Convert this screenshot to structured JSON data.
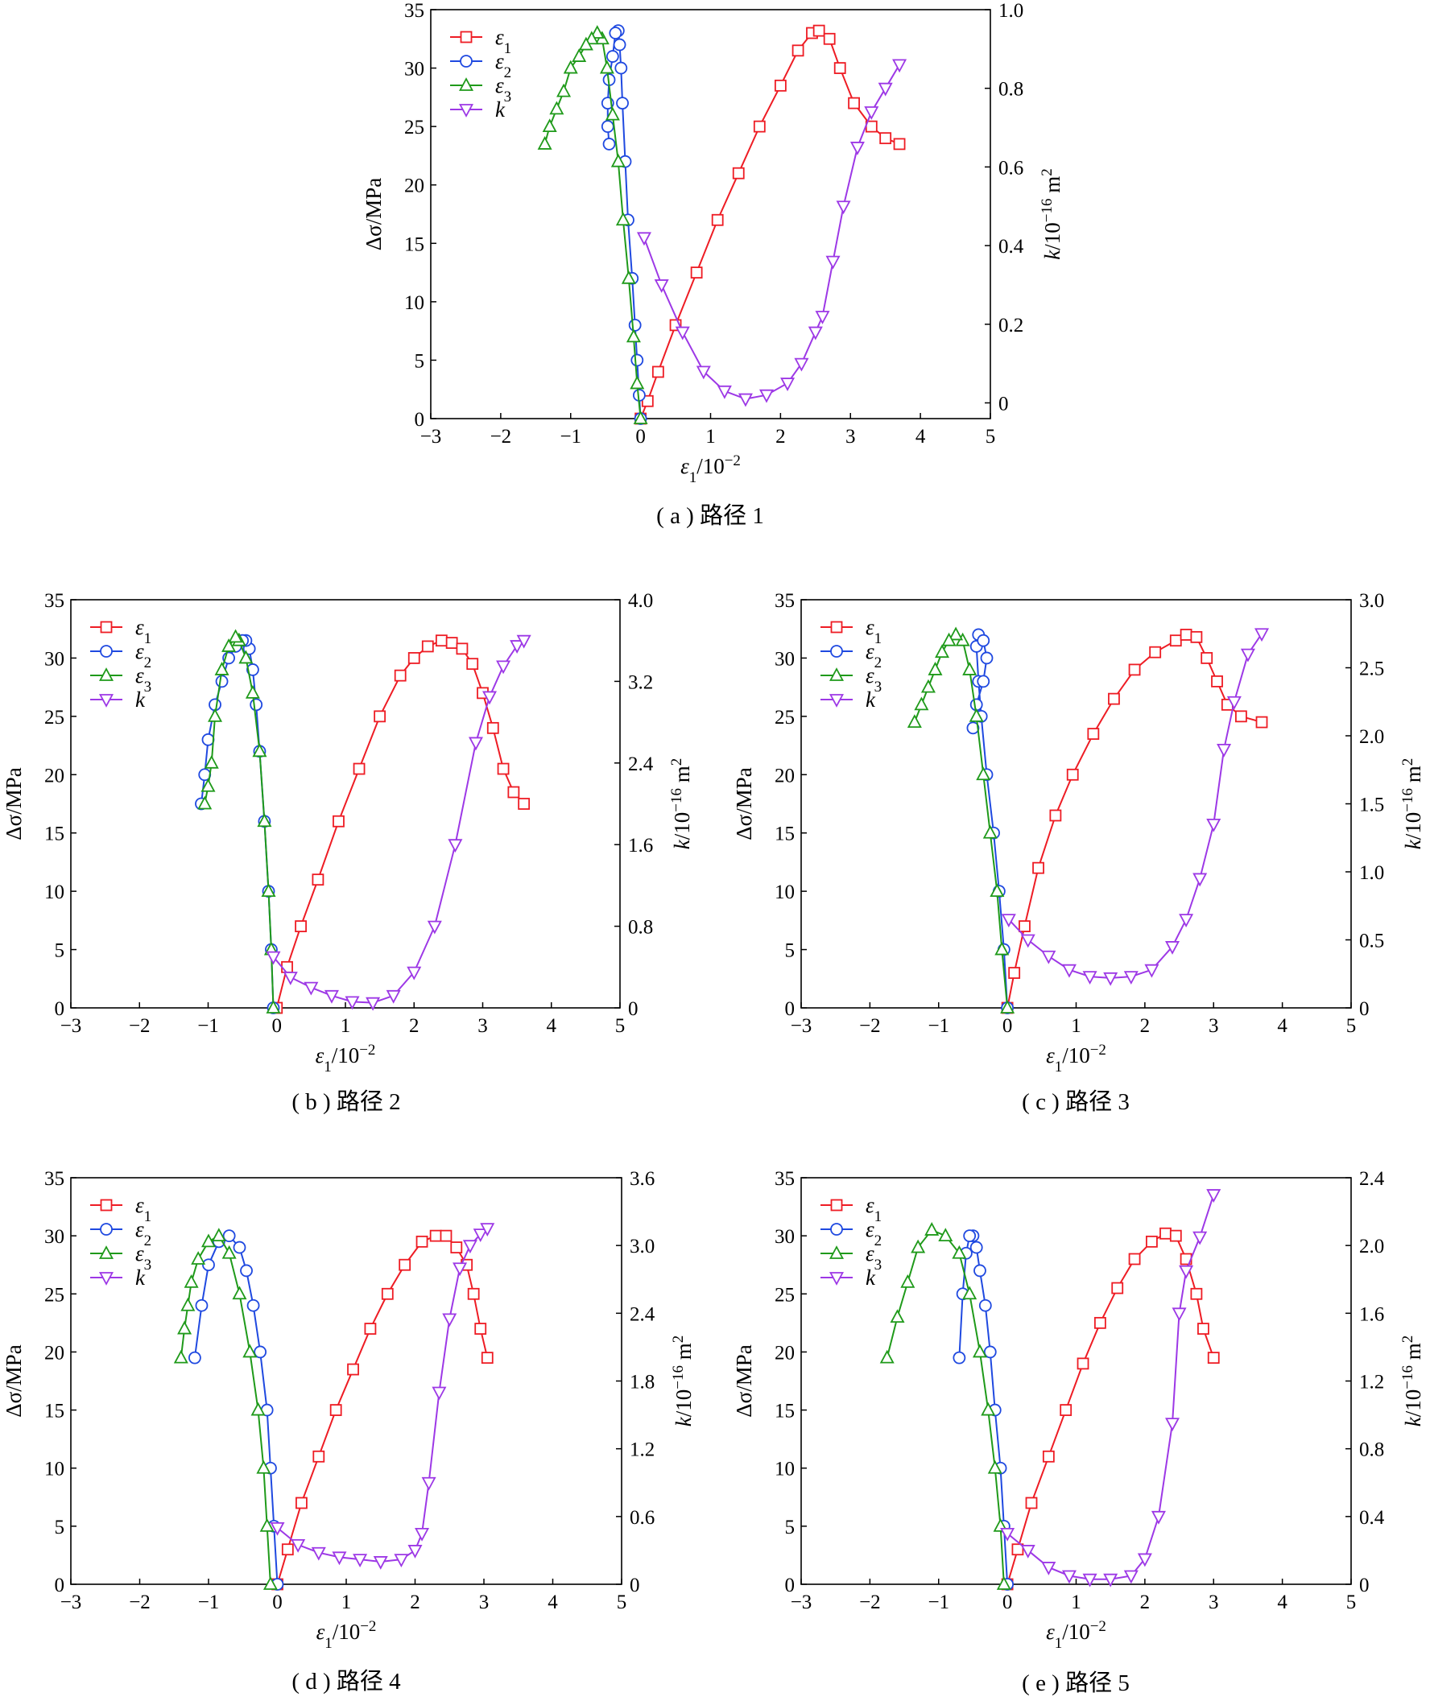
{
  "colors": {
    "eps1": "#ee1c24",
    "eps2": "#1f49e0",
    "eps3": "#1f9a1a",
    "k": "#9d38e6"
  },
  "axis_labels": {
    "x": {
      "pre": "ε",
      "sub": "1",
      "post": "/10",
      "sup": "−2"
    },
    "yleft": "Δσ/MPa",
    "yright": {
      "pre": "k",
      "post": "/10",
      "sup": "−16",
      "unit": " m",
      "unitsup": "2"
    }
  },
  "legend_labels": [
    {
      "key": "eps1",
      "pre": "ε",
      "sub": "1"
    },
    {
      "key": "eps2",
      "pre": "ε",
      "sub": "2"
    },
    {
      "key": "eps3",
      "pre": "ε",
      "sub": "3"
    },
    {
      "key": "k",
      "pre": "k",
      "sub": ""
    }
  ],
  "chart_data": [
    {
      "id": "a",
      "type": "line",
      "caption": "( a ) 路径 1",
      "xlim": [
        -3,
        5
      ],
      "xticks": [
        -3,
        -2,
        -1,
        0,
        1,
        2,
        3,
        4,
        5
      ],
      "ylim": [
        0,
        35
      ],
      "yticks": [
        0,
        5,
        10,
        15,
        20,
        25,
        30,
        35
      ],
      "y2lim": [
        -0.04,
        1.0
      ],
      "y2ticks": [
        0,
        0.2,
        0.4,
        0.6,
        0.8,
        1.0
      ],
      "y2ticklabels": [
        "0",
        "0.2",
        "0.4",
        "0.6",
        "0.8",
        "1.0"
      ],
      "legend": "top-left",
      "series": [
        {
          "key": "eps1",
          "axis": "left",
          "marker": "square",
          "x": [
            0,
            0.1,
            0.25,
            0.5,
            0.8,
            1.1,
            1.4,
            1.7,
            2.0,
            2.25,
            2.45,
            2.55,
            2.7,
            2.85,
            3.05,
            3.3,
            3.5,
            3.7
          ],
          "y": [
            0,
            1.5,
            4,
            8,
            12.5,
            17,
            21,
            25,
            28.5,
            31.5,
            33,
            33.2,
            32.5,
            30,
            27,
            25,
            24,
            23.5
          ]
        },
        {
          "key": "eps2",
          "axis": "left",
          "marker": "circle",
          "x": [
            0,
            -0.02,
            -0.05,
            -0.08,
            -0.12,
            -0.18,
            -0.22,
            -0.26,
            -0.28,
            -0.3,
            -0.32,
            -0.36,
            -0.4,
            -0.45,
            -0.47,
            -0.47,
            -0.45
          ],
          "y": [
            0,
            2,
            5,
            8,
            12,
            17,
            22,
            27,
            30,
            32,
            33.2,
            33,
            31,
            29,
            27,
            25,
            23.5
          ]
        },
        {
          "key": "eps3",
          "axis": "left",
          "marker": "triangle-up",
          "x": [
            0,
            -0.05,
            -0.1,
            -0.17,
            -0.25,
            -0.32,
            -0.4,
            -0.48,
            -0.55,
            -0.62,
            -0.7,
            -0.78,
            -0.88,
            -1.0,
            -1.1,
            -1.2,
            -1.3,
            -1.37
          ],
          "y": [
            0,
            3,
            7,
            12,
            17,
            22,
            26,
            30,
            32.5,
            33,
            32.5,
            32,
            31,
            30,
            28,
            26.5,
            25,
            23.5
          ]
        },
        {
          "key": "k",
          "axis": "right",
          "marker": "triangle-down",
          "x": [
            0.05,
            0.3,
            0.6,
            0.9,
            1.2,
            1.5,
            1.8,
            2.1,
            2.3,
            2.5,
            2.6,
            2.75,
            2.9,
            3.1,
            3.3,
            3.5,
            3.7
          ],
          "y": [
            0.42,
            0.3,
            0.18,
            0.08,
            0.03,
            0.01,
            0.02,
            0.05,
            0.1,
            0.18,
            0.22,
            0.36,
            0.5,
            0.65,
            0.74,
            0.8,
            0.86
          ]
        }
      ]
    },
    {
      "id": "b",
      "type": "line",
      "caption": "( b ) 路径 2",
      "xlim": [
        -3,
        5
      ],
      "xticks": [
        -3,
        -2,
        -1,
        0,
        1,
        2,
        3,
        4,
        5
      ],
      "ylim": [
        0,
        35
      ],
      "yticks": [
        0,
        5,
        10,
        15,
        20,
        25,
        30,
        35
      ],
      "y2lim": [
        0,
        4.0
      ],
      "y2ticks": [
        0,
        0.8,
        1.6,
        2.4,
        3.2,
        4.0
      ],
      "y2ticklabels": [
        "0",
        "0.8",
        "1.6",
        "2.4",
        "3.2",
        "4.0"
      ],
      "legend": "top-left",
      "series": [
        {
          "key": "eps1",
          "axis": "left",
          "marker": "square",
          "x": [
            0,
            0.15,
            0.35,
            0.6,
            0.9,
            1.2,
            1.5,
            1.8,
            2.0,
            2.2,
            2.4,
            2.55,
            2.7,
            2.85,
            3.0,
            3.15,
            3.3,
            3.45,
            3.6
          ],
          "y": [
            0,
            3.5,
            7,
            11,
            16,
            20.5,
            25,
            28.5,
            30,
            31,
            31.5,
            31.3,
            30.8,
            29.5,
            27,
            24,
            20.5,
            18.5,
            17.5
          ]
        },
        {
          "key": "eps2",
          "axis": "left",
          "marker": "circle",
          "x": [
            -0.05,
            -0.08,
            -0.12,
            -0.18,
            -0.25,
            -0.3,
            -0.35,
            -0.4,
            -0.45,
            -0.5,
            -0.6,
            -0.7,
            -0.8,
            -0.9,
            -1.0,
            -1.05,
            -1.1
          ],
          "y": [
            0,
            5,
            10,
            16,
            22,
            26,
            29,
            30.8,
            31.5,
            31.5,
            31,
            30,
            28,
            26,
            23,
            20,
            17.5
          ]
        },
        {
          "key": "eps3",
          "axis": "left",
          "marker": "triangle-up",
          "x": [
            -0.05,
            -0.08,
            -0.12,
            -0.18,
            -0.25,
            -0.35,
            -0.45,
            -0.55,
            -0.6,
            -0.7,
            -0.8,
            -0.9,
            -0.95,
            -1.0,
            -1.05
          ],
          "y": [
            0,
            5,
            10,
            16,
            22,
            27,
            30,
            31.5,
            31.8,
            31,
            29,
            25,
            21,
            19,
            17.5
          ]
        },
        {
          "key": "k",
          "axis": "right",
          "marker": "triangle-down",
          "x": [
            -0.05,
            0.2,
            0.5,
            0.8,
            1.1,
            1.4,
            1.7,
            2.0,
            2.3,
            2.6,
            2.9,
            3.1,
            3.3,
            3.5,
            3.6
          ],
          "y": [
            0.5,
            0.3,
            0.2,
            0.12,
            0.06,
            0.05,
            0.12,
            0.35,
            0.8,
            1.6,
            2.6,
            3.05,
            3.35,
            3.55,
            3.6
          ]
        }
      ]
    },
    {
      "id": "c",
      "type": "line",
      "caption": "( c ) 路径 3",
      "xlim": [
        -3,
        5
      ],
      "xticks": [
        -3,
        -2,
        -1,
        0,
        1,
        2,
        3,
        4,
        5
      ],
      "ylim": [
        0,
        35
      ],
      "yticks": [
        0,
        5,
        10,
        15,
        20,
        25,
        30,
        35
      ],
      "y2lim": [
        0,
        3.0
      ],
      "y2ticks": [
        0,
        0.5,
        1.0,
        1.5,
        2.0,
        2.5,
        3.0
      ],
      "y2ticklabels": [
        "0",
        "0.5",
        "1.0",
        "1.5",
        "2.0",
        "2.5",
        "3.0"
      ],
      "legend": "top-left",
      "series": [
        {
          "key": "eps1",
          "axis": "left",
          "marker": "square",
          "x": [
            0,
            0.1,
            0.25,
            0.45,
            0.7,
            0.95,
            1.25,
            1.55,
            1.85,
            2.15,
            2.45,
            2.6,
            2.75,
            2.9,
            3.05,
            3.2,
            3.4,
            3.7
          ],
          "y": [
            0,
            3,
            7,
            12,
            16.5,
            20,
            23.5,
            26.5,
            29,
            30.5,
            31.5,
            32,
            31.8,
            30,
            28,
            26,
            25,
            24.5
          ]
        },
        {
          "key": "eps2",
          "axis": "left",
          "marker": "circle",
          "x": [
            0,
            -0.05,
            -0.12,
            -0.2,
            -0.3,
            -0.38,
            -0.42,
            -0.45,
            -0.42,
            -0.35,
            -0.3,
            -0.35,
            -0.45,
            -0.5
          ],
          "y": [
            0,
            5,
            10,
            15,
            20,
            25,
            28,
            31,
            32,
            31.5,
            30,
            28,
            26,
            24
          ]
        },
        {
          "key": "eps3",
          "axis": "left",
          "marker": "triangle-up",
          "x": [
            0,
            -0.08,
            -0.15,
            -0.25,
            -0.35,
            -0.45,
            -0.55,
            -0.65,
            -0.75,
            -0.85,
            -0.95,
            -1.05,
            -1.15,
            -1.25,
            -1.35
          ],
          "y": [
            0,
            5,
            10,
            15,
            20,
            25,
            29,
            31.5,
            32,
            31.5,
            30.5,
            29,
            27.5,
            26,
            24.5
          ]
        },
        {
          "key": "k",
          "axis": "right",
          "marker": "triangle-down",
          "x": [
            0.02,
            0.3,
            0.6,
            0.9,
            1.2,
            1.5,
            1.8,
            2.1,
            2.4,
            2.6,
            2.8,
            3.0,
            3.15,
            3.3,
            3.5,
            3.7
          ],
          "y": [
            0.65,
            0.5,
            0.38,
            0.28,
            0.23,
            0.22,
            0.23,
            0.28,
            0.45,
            0.65,
            0.95,
            1.35,
            1.9,
            2.25,
            2.6,
            2.75
          ]
        }
      ]
    },
    {
      "id": "d",
      "type": "line",
      "caption": "( d ) 路径 4",
      "xlim": [
        -3,
        5
      ],
      "xticks": [
        -3,
        -2,
        -1,
        0,
        1,
        2,
        3,
        4,
        5
      ],
      "ylim": [
        0,
        35
      ],
      "yticks": [
        0,
        5,
        10,
        15,
        20,
        25,
        30,
        35
      ],
      "y2lim": [
        0,
        3.6
      ],
      "y2ticks": [
        0,
        0.6,
        1.2,
        1.8,
        2.4,
        3.0,
        3.6
      ],
      "y2ticklabels": [
        "0",
        "0.6",
        "1.2",
        "1.8",
        "2.4",
        "3.0",
        "3.6"
      ],
      "legend": "top-left",
      "series": [
        {
          "key": "eps1",
          "axis": "left",
          "marker": "square",
          "x": [
            0,
            0.15,
            0.35,
            0.6,
            0.85,
            1.1,
            1.35,
            1.6,
            1.85,
            2.1,
            2.3,
            2.45,
            2.6,
            2.75,
            2.85,
            2.95,
            3.05
          ],
          "y": [
            0,
            3,
            7,
            11,
            15,
            18.5,
            22,
            25,
            27.5,
            29.5,
            30,
            30,
            29,
            27.5,
            25,
            22,
            19.5
          ]
        },
        {
          "key": "eps2",
          "axis": "left",
          "marker": "circle",
          "x": [
            0,
            -0.05,
            -0.1,
            -0.15,
            -0.25,
            -0.35,
            -0.45,
            -0.55,
            -0.7,
            -0.85,
            -1.0,
            -1.1,
            -1.2
          ],
          "y": [
            0,
            5,
            10,
            15,
            20,
            24,
            27,
            29,
            30,
            29.5,
            27.5,
            24,
            19.5
          ]
        },
        {
          "key": "eps3",
          "axis": "left",
          "marker": "triangle-up",
          "x": [
            -0.1,
            -0.15,
            -0.2,
            -0.28,
            -0.4,
            -0.55,
            -0.7,
            -0.85,
            -1.0,
            -1.15,
            -1.25,
            -1.3,
            -1.35,
            -1.4
          ],
          "y": [
            0,
            5,
            10,
            15,
            20,
            25,
            28.5,
            30,
            29.5,
            28,
            26,
            24,
            22,
            19.5
          ]
        },
        {
          "key": "k",
          "axis": "right",
          "marker": "triangle-down",
          "x": [
            0,
            0.3,
            0.6,
            0.9,
            1.2,
            1.5,
            1.8,
            2.0,
            2.1,
            2.2,
            2.35,
            2.5,
            2.65,
            2.8,
            2.95,
            3.05
          ],
          "y": [
            0.5,
            0.35,
            0.28,
            0.24,
            0.22,
            0.2,
            0.22,
            0.3,
            0.45,
            0.9,
            1.7,
            2.35,
            2.8,
            3.0,
            3.1,
            3.15
          ]
        }
      ]
    },
    {
      "id": "e",
      "type": "line",
      "caption": "( e ) 路径 5",
      "xlim": [
        -3,
        5
      ],
      "xticks": [
        -3,
        -2,
        -1,
        0,
        1,
        2,
        3,
        4,
        5
      ],
      "ylim": [
        0,
        35
      ],
      "yticks": [
        0,
        5,
        10,
        15,
        20,
        25,
        30,
        35
      ],
      "y2lim": [
        0,
        2.4
      ],
      "y2ticks": [
        0,
        0.4,
        0.8,
        1.2,
        1.6,
        2.0,
        2.4
      ],
      "y2ticklabels": [
        "0",
        "0.4",
        "0.8",
        "1.2",
        "1.6",
        "2.0",
        "2.4"
      ],
      "legend": "top-left",
      "series": [
        {
          "key": "eps1",
          "axis": "left",
          "marker": "square",
          "x": [
            0,
            0.15,
            0.35,
            0.6,
            0.85,
            1.1,
            1.35,
            1.6,
            1.85,
            2.1,
            2.3,
            2.45,
            2.6,
            2.75,
            2.85,
            3.0
          ],
          "y": [
            0,
            3,
            7,
            11,
            15,
            19,
            22.5,
            25.5,
            28,
            29.5,
            30.2,
            30,
            28,
            25,
            22,
            19.5
          ]
        },
        {
          "key": "eps2",
          "axis": "left",
          "marker": "circle",
          "x": [
            0,
            -0.05,
            -0.1,
            -0.18,
            -0.25,
            -0.32,
            -0.4,
            -0.45,
            -0.5,
            -0.55,
            -0.6,
            -0.65,
            -0.7
          ],
          "y": [
            0,
            5,
            10,
            15,
            20,
            24,
            27,
            29,
            30,
            30,
            28.5,
            25,
            19.5
          ]
        },
        {
          "key": "eps3",
          "axis": "left",
          "marker": "triangle-up",
          "x": [
            -0.05,
            -0.1,
            -0.18,
            -0.28,
            -0.4,
            -0.55,
            -0.7,
            -0.9,
            -1.1,
            -1.3,
            -1.45,
            -1.6,
            -1.75
          ],
          "y": [
            0,
            5,
            10,
            15,
            20,
            25,
            28.5,
            30,
            30.5,
            29,
            26,
            23,
            19.5
          ]
        },
        {
          "key": "k",
          "axis": "right",
          "marker": "triangle-down",
          "x": [
            0,
            0.3,
            0.6,
            0.9,
            1.2,
            1.5,
            1.8,
            2.0,
            2.2,
            2.4,
            2.5,
            2.6,
            2.8,
            3.0
          ],
          "y": [
            0.3,
            0.2,
            0.1,
            0.05,
            0.03,
            0.03,
            0.05,
            0.15,
            0.4,
            0.95,
            1.6,
            1.85,
            2.05,
            2.3
          ]
        }
      ]
    }
  ]
}
